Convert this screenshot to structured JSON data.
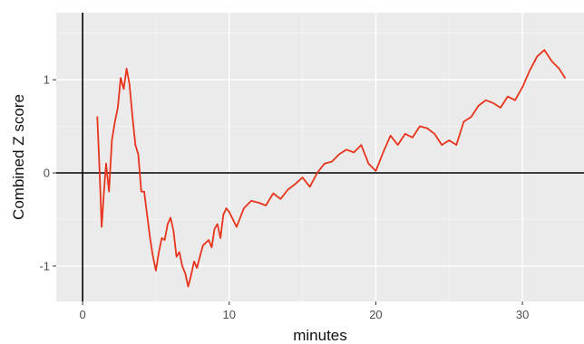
{
  "chart_data": {
    "type": "line",
    "title": "",
    "xlabel": "minutes",
    "ylabel": "Combined Z score",
    "xlim": [
      -1.8,
      34.2
    ],
    "ylim": [
      -1.38,
      1.72
    ],
    "x_ticks": [
      0,
      10,
      20,
      30
    ],
    "x_tick_labels": [
      "0",
      "10",
      "20",
      "30"
    ],
    "y_ticks": [
      -1,
      0,
      1
    ],
    "y_tick_labels": [
      "-1",
      "0",
      "1"
    ],
    "grid": true,
    "background": "#ebebeb",
    "reference_lines": [
      {
        "axis": "x",
        "value": 0
      },
      {
        "axis": "y",
        "value": 0
      }
    ],
    "series": [
      {
        "color": "#e8341c",
        "x": [
          1.0,
          1.15,
          1.3,
          1.45,
          1.6,
          1.8,
          2.0,
          2.2,
          2.4,
          2.6,
          2.8,
          3.0,
          3.2,
          3.4,
          3.6,
          3.8,
          4.0,
          4.2,
          4.4,
          4.6,
          4.8,
          5.0,
          5.2,
          5.4,
          5.6,
          5.8,
          6.0,
          6.2,
          6.4,
          6.6,
          6.8,
          7.0,
          7.2,
          7.4,
          7.6,
          7.8,
          8.0,
          8.2,
          8.4,
          8.6,
          8.8,
          9.0,
          9.2,
          9.4,
          9.6,
          9.8,
          10.0,
          10.5,
          11.0,
          11.5,
          12.0,
          12.5,
          13.0,
          13.5,
          14.0,
          14.5,
          15.0,
          15.5,
          16.0,
          16.5,
          17.0,
          17.5,
          18.0,
          18.5,
          19.0,
          19.5,
          20.0,
          20.5,
          21.0,
          21.5,
          22.0,
          22.5,
          23.0,
          23.5,
          24.0,
          24.5,
          25.0,
          25.5,
          26.0,
          26.5,
          27.0,
          27.5,
          28.0,
          28.5,
          29.0,
          29.5,
          30.0,
          30.5,
          31.0,
          31.5,
          32.0,
          32.5,
          32.9
        ],
        "y": [
          0.6,
          0.05,
          -0.58,
          -0.22,
          0.1,
          -0.2,
          0.35,
          0.55,
          0.7,
          1.02,
          0.9,
          1.12,
          0.95,
          0.6,
          0.3,
          0.2,
          -0.2,
          -0.2,
          -0.45,
          -0.7,
          -0.9,
          -1.05,
          -0.85,
          -0.7,
          -0.72,
          -0.55,
          -0.48,
          -0.62,
          -0.9,
          -0.85,
          -1.0,
          -1.08,
          -1.22,
          -1.1,
          -0.95,
          -1.02,
          -0.9,
          -0.78,
          -0.75,
          -0.72,
          -0.8,
          -0.6,
          -0.55,
          -0.7,
          -0.45,
          -0.38,
          -0.42,
          -0.58,
          -0.38,
          -0.3,
          -0.32,
          -0.35,
          -0.22,
          -0.28,
          -0.18,
          -0.12,
          -0.05,
          -0.15,
          0.0,
          0.1,
          0.12,
          0.2,
          0.25,
          0.22,
          0.3,
          0.1,
          0.02,
          0.22,
          0.4,
          0.3,
          0.42,
          0.38,
          0.5,
          0.48,
          0.42,
          0.3,
          0.35,
          0.3,
          0.55,
          0.6,
          0.72,
          0.78,
          0.75,
          0.7,
          0.82,
          0.78,
          0.92,
          1.1,
          1.25,
          1.32,
          1.2,
          1.12,
          1.02
        ]
      }
    ]
  }
}
